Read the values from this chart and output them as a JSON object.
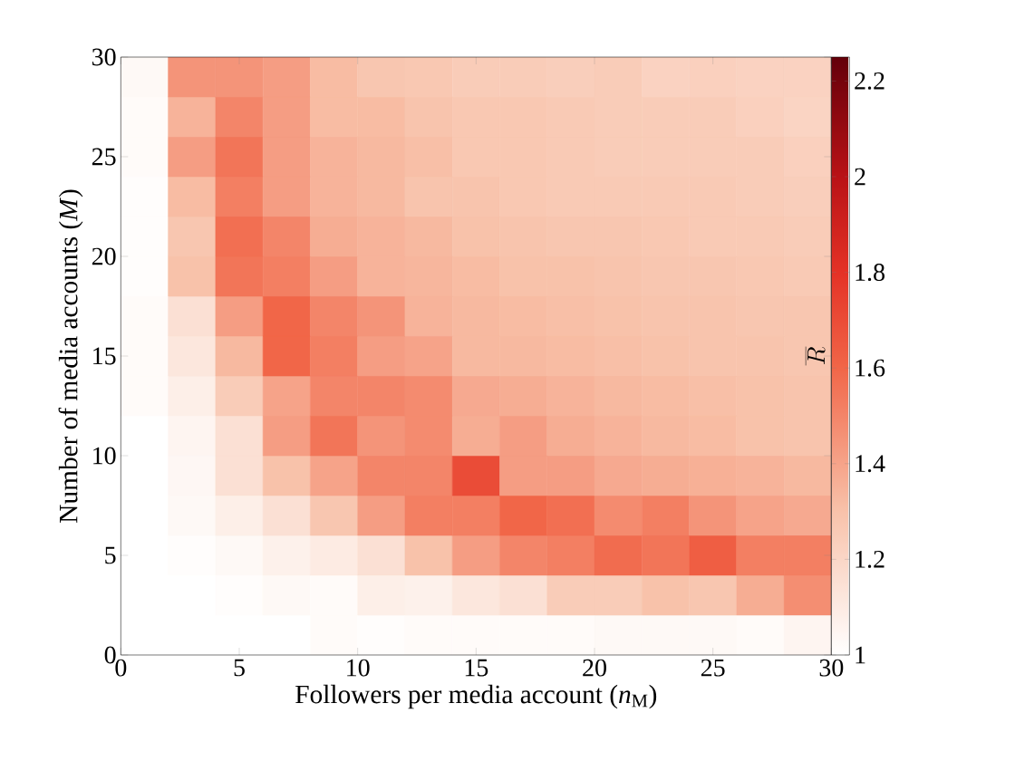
{
  "chart_data": {
    "type": "heatmap",
    "xlabel": "Followers per media account (*n*$_{M}$)",
    "ylabel": "Number of media accounts (*M*)",
    "clabel": "\\overline{R}",
    "x": [
      1,
      3,
      5,
      7,
      9,
      11,
      13,
      15,
      17,
      19,
      21,
      23,
      25,
      27,
      29
    ],
    "y": [
      29,
      27,
      25,
      23,
      21,
      19,
      17,
      15,
      13,
      11,
      9,
      7,
      5,
      3,
      1
    ],
    "xlim": [
      0,
      30
    ],
    "ylim": [
      0,
      30
    ],
    "xticks": [
      0,
      5,
      10,
      15,
      20,
      25,
      30
    ],
    "yticks": [
      0,
      5,
      10,
      15,
      20,
      25,
      30
    ],
    "clim": [
      1,
      2.25
    ],
    "cticks": [
      1,
      1.2,
      1.4,
      1.6,
      1.8,
      2,
      2.2
    ],
    "cells": [
      [
        1.03,
        1.45,
        1.45,
        1.42,
        1.32,
        1.28,
        1.27,
        1.25,
        1.25,
        1.24,
        1.25,
        1.22,
        1.23,
        1.22,
        1.22
      ],
      [
        1.02,
        1.35,
        1.5,
        1.42,
        1.32,
        1.32,
        1.29,
        1.27,
        1.27,
        1.26,
        1.25,
        1.25,
        1.25,
        1.23,
        1.21
      ],
      [
        1.02,
        1.42,
        1.55,
        1.42,
        1.35,
        1.33,
        1.31,
        1.27,
        1.27,
        1.26,
        1.25,
        1.25,
        1.25,
        1.25,
        1.23
      ],
      [
        1.01,
        1.32,
        1.52,
        1.42,
        1.35,
        1.33,
        1.29,
        1.29,
        1.27,
        1.26,
        1.26,
        1.26,
        1.26,
        1.25,
        1.24
      ],
      [
        1.01,
        1.28,
        1.57,
        1.5,
        1.37,
        1.35,
        1.33,
        1.3,
        1.29,
        1.28,
        1.28,
        1.27,
        1.26,
        1.26,
        1.25
      ],
      [
        1.01,
        1.3,
        1.55,
        1.52,
        1.42,
        1.35,
        1.34,
        1.32,
        1.3,
        1.3,
        1.29,
        1.28,
        1.28,
        1.27,
        1.26
      ],
      [
        1.02,
        1.15,
        1.42,
        1.6,
        1.5,
        1.45,
        1.35,
        1.33,
        1.32,
        1.31,
        1.3,
        1.29,
        1.29,
        1.28,
        1.28
      ],
      [
        1.02,
        1.12,
        1.33,
        1.6,
        1.52,
        1.42,
        1.4,
        1.33,
        1.33,
        1.32,
        1.31,
        1.3,
        1.29,
        1.29,
        1.28
      ],
      [
        1.02,
        1.08,
        1.25,
        1.4,
        1.5,
        1.5,
        1.48,
        1.38,
        1.37,
        1.35,
        1.33,
        1.32,
        1.31,
        1.3,
        1.29
      ],
      [
        1.0,
        1.05,
        1.15,
        1.42,
        1.55,
        1.45,
        1.48,
        1.37,
        1.42,
        1.37,
        1.35,
        1.33,
        1.32,
        1.3,
        1.29
      ],
      [
        1.0,
        1.04,
        1.15,
        1.3,
        1.4,
        1.5,
        1.5,
        1.7,
        1.42,
        1.42,
        1.38,
        1.37,
        1.36,
        1.35,
        1.33
      ],
      [
        1.0,
        1.03,
        1.08,
        1.15,
        1.28,
        1.42,
        1.52,
        1.52,
        1.6,
        1.57,
        1.48,
        1.52,
        1.45,
        1.4,
        1.38
      ],
      [
        1.0,
        1.01,
        1.03,
        1.07,
        1.1,
        1.15,
        1.3,
        1.42,
        1.5,
        1.52,
        1.58,
        1.55,
        1.63,
        1.52,
        1.52
      ],
      [
        1.0,
        1.0,
        1.01,
        1.03,
        1.02,
        1.08,
        1.07,
        1.12,
        1.15,
        1.25,
        1.25,
        1.3,
        1.28,
        1.37,
        1.47
      ],
      [
        1.0,
        1.0,
        1.0,
        1.0,
        1.02,
        1.01,
        1.02,
        1.02,
        1.02,
        1.02,
        1.03,
        1.03,
        1.03,
        1.02,
        1.05
      ]
    ]
  }
}
